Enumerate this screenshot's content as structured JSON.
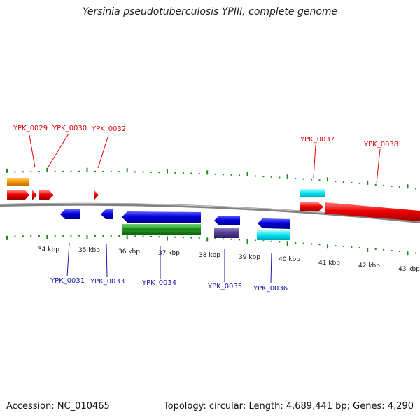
{
  "title": "Yersinia pseudotuberculosis YPIII, complete genome",
  "footer": {
    "accession": "Accession: NC_010465",
    "topology": "Topology: circular; Length: 4,689,441 bp; Genes: 4,290"
  },
  "scale_labels": [
    "34 kbp",
    "35 kbp",
    "36 kbp",
    "37 kbp",
    "38 kbp",
    "39 kbp",
    "40 kbp",
    "41 kbp",
    "42 kbp",
    "43 kbp"
  ],
  "top_gene_labels": [
    "YPK_0029",
    "YPK_0030",
    "YPK_0032",
    "YPK_0037",
    "YPK_0038"
  ],
  "bottom_gene_labels": [
    "YPK_0031",
    "YPK_0033",
    "YPK_0034",
    "YPK_0035",
    "YPK_0036"
  ],
  "colors": {
    "forward_cds": "#ee0000",
    "reverse_cds": "#0000dd",
    "orange_feature": "#f59a10",
    "cyan_feature": "#00e0ee",
    "green_feature": "#20a020",
    "purple_feature": "#503a90",
    "ticks": "#1a8a1a",
    "backbone": "#808080"
  }
}
